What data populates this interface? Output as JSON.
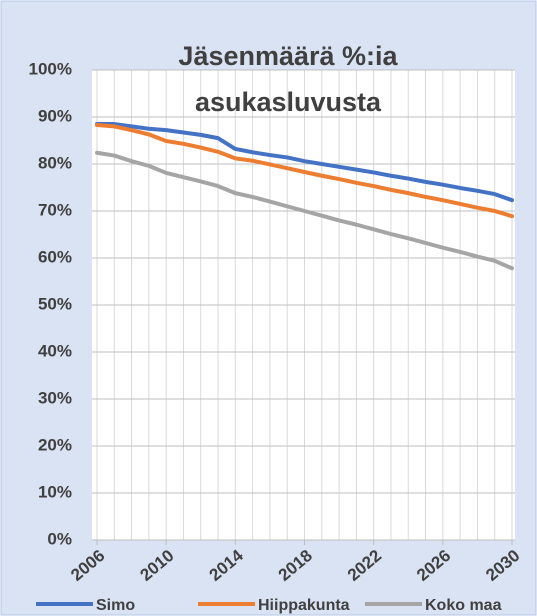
{
  "chart_data": {
    "type": "line",
    "title_lines": [
      "Jäsenmäärä %:ia",
      "asukasluvusta"
    ],
    "x": [
      2006,
      2007,
      2008,
      2009,
      2010,
      2011,
      2012,
      2013,
      2014,
      2015,
      2016,
      2017,
      2018,
      2019,
      2020,
      2021,
      2022,
      2023,
      2024,
      2025,
      2026,
      2027,
      2028,
      2029,
      2030
    ],
    "series": [
      {
        "name": "Simo",
        "color": "#4472c4",
        "values": [
          88.5,
          88.5,
          88.0,
          87.5,
          87.2,
          86.7,
          86.2,
          85.5,
          83.2,
          82.5,
          81.9,
          81.4,
          80.6,
          80.0,
          79.4,
          78.8,
          78.2,
          77.5,
          76.9,
          76.2,
          75.6,
          74.9,
          74.3,
          73.6,
          72.3
        ]
      },
      {
        "name": "Hiippakunta",
        "color": "#ed7d31",
        "values": [
          88.3,
          88.0,
          87.2,
          86.3,
          84.9,
          84.3,
          83.5,
          82.6,
          81.2,
          80.7,
          79.9,
          79.1,
          78.3,
          77.5,
          76.8,
          76.0,
          75.3,
          74.5,
          73.8,
          73.0,
          72.3,
          71.5,
          70.7,
          70.0,
          68.9
        ]
      },
      {
        "name": "Koko maa",
        "color": "#a5a5a5",
        "values": [
          82.4,
          81.8,
          80.6,
          79.6,
          78.1,
          77.2,
          76.3,
          75.3,
          73.8,
          73.0,
          72.0,
          71.0,
          70.0,
          69.0,
          68.0,
          67.1,
          66.1,
          65.1,
          64.2,
          63.2,
          62.2,
          61.3,
          60.3,
          59.4,
          57.8
        ]
      }
    ],
    "xlim": [
      2006,
      2030
    ],
    "xticks": [
      2006,
      2010,
      2014,
      2018,
      2022,
      2026,
      2030
    ],
    "ylim": [
      0,
      100
    ],
    "yticks": [
      {
        "value": 0,
        "label": "0%"
      },
      {
        "value": 10,
        "label": "10%"
      },
      {
        "value": 20,
        "label": "20%"
      },
      {
        "value": 30,
        "label": "30%"
      },
      {
        "value": 40,
        "label": "40%"
      },
      {
        "value": 50,
        "label": "50%"
      },
      {
        "value": 60,
        "label": "60%"
      },
      {
        "value": 70,
        "label": "70%"
      },
      {
        "value": 80,
        "label": "80%"
      },
      {
        "value": 90,
        "label": "90%"
      },
      {
        "value": 100,
        "label": "100%"
      }
    ],
    "grid": true,
    "legend": "bottom"
  }
}
